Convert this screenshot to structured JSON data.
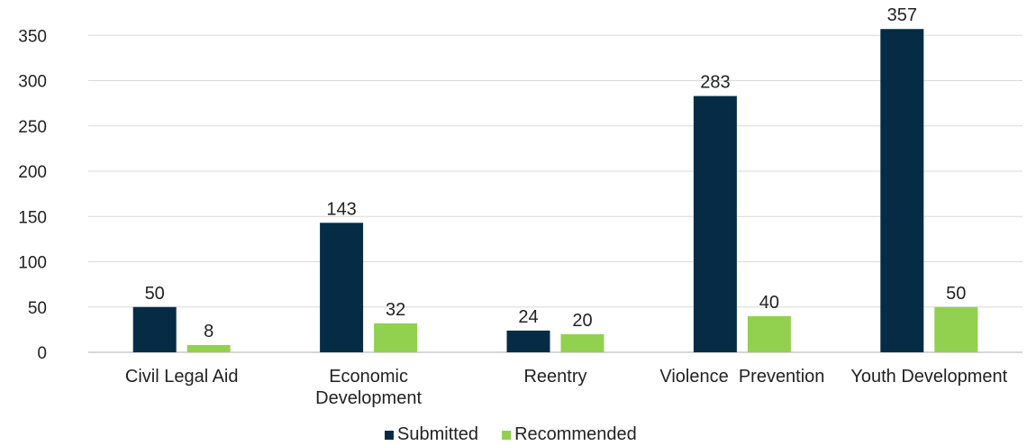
{
  "chart_data": {
    "type": "bar",
    "categories": [
      [
        "Civil Legal Aid"
      ],
      [
        "Economic",
        "Development"
      ],
      [
        "Reentry"
      ],
      [
        "Violence  Prevention"
      ],
      [
        "Youth Development"
      ]
    ],
    "series": [
      {
        "name": "Submitted",
        "color": "#062c45",
        "values": [
          50,
          143,
          24,
          283,
          357
        ]
      },
      {
        "name": "Recommended",
        "color": "#92d050",
        "values": [
          8,
          32,
          20,
          40,
          50
        ]
      }
    ],
    "y_ticks": [
      "0",
      "50",
      "100",
      "150",
      "200",
      "250",
      "300",
      "350"
    ],
    "ylim": [
      0,
      350
    ],
    "grid": true,
    "legend_position": "bottom-center"
  }
}
